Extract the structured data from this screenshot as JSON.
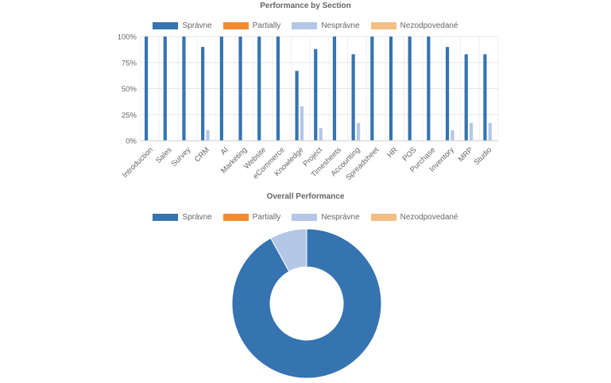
{
  "chart_data": [
    {
      "type": "bar",
      "title": "Performance by Section",
      "categories": [
        "Introduction",
        "Sales",
        "Survey",
        "CRM",
        "AI",
        "Marketing",
        "Website",
        "eCommerce",
        "Knowledge",
        "Project",
        "Timesheets",
        "Accounting",
        "Spreadsheet",
        "HR",
        "POS",
        "Purchase",
        "Inventory",
        "MRP",
        "Studio"
      ],
      "series": [
        {
          "name": "Správne",
          "color": "#3673b1",
          "values": [
            100,
            100,
            100,
            90,
            100,
            100,
            100,
            100,
            67,
            88,
            100,
            83,
            100,
            100,
            100,
            100,
            90,
            83,
            83
          ]
        },
        {
          "name": "Partially",
          "color": "#f58a2e",
          "values": [
            0,
            0,
            0,
            0,
            0,
            0,
            0,
            0,
            0,
            0,
            0,
            0,
            0,
            0,
            0,
            0,
            0,
            0,
            0
          ]
        },
        {
          "name": "Nesprávne",
          "color": "#b4c7e7",
          "values": [
            0,
            0,
            0,
            10,
            0,
            0,
            0,
            0,
            33,
            12,
            0,
            17,
            0,
            0,
            0,
            0,
            10,
            17,
            17
          ]
        },
        {
          "name": "Nezodpovedané",
          "color": "#f5be82",
          "values": [
            0,
            0,
            0,
            0,
            0,
            0,
            0,
            0,
            0,
            0,
            0,
            0,
            0,
            0,
            0,
            0,
            0,
            0,
            0
          ]
        }
      ],
      "ylim": [
        0,
        100
      ],
      "yticks": [
        "0%",
        "25%",
        "50%",
        "75%",
        "100%"
      ],
      "grid": true,
      "legend": "top"
    },
    {
      "type": "pie",
      "title": "Overall Performance",
      "labels": [
        "Správne",
        "Partially",
        "Nesprávne",
        "Nezodpovedané"
      ],
      "colors": [
        "#3673b1",
        "#f58a2e",
        "#b4c7e7",
        "#f5be82"
      ],
      "values": [
        92,
        0,
        8,
        0
      ],
      "donut": true,
      "legend": "top"
    }
  ]
}
